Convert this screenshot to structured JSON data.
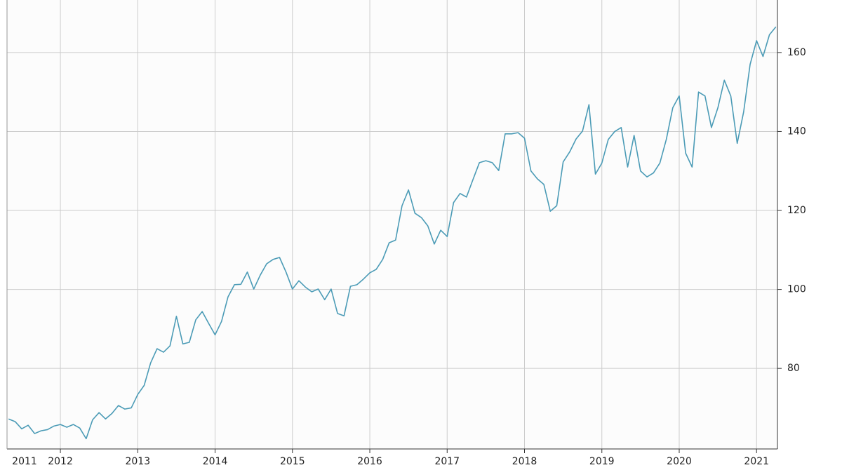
{
  "chart_data": {
    "type": "line",
    "x": [
      2011.33,
      2011.4167,
      2011.5,
      2011.5833,
      2011.6667,
      2011.75,
      2011.8333,
      2011.9167,
      2012.0,
      2012.0833,
      2012.1667,
      2012.25,
      2012.3333,
      2012.4167,
      2012.5,
      2012.5833,
      2012.6667,
      2012.75,
      2012.8333,
      2012.9167,
      2013.0,
      2013.0833,
      2013.1667,
      2013.25,
      2013.3333,
      2013.4167,
      2013.5,
      2013.5833,
      2013.6667,
      2013.75,
      2013.8333,
      2013.9167,
      2014.0,
      2014.0833,
      2014.1667,
      2014.25,
      2014.3333,
      2014.4167,
      2014.5,
      2014.5833,
      2014.6667,
      2014.75,
      2014.8333,
      2014.9167,
      2015.0,
      2015.0833,
      2015.1667,
      2015.25,
      2015.3333,
      2015.4167,
      2015.5,
      2015.5833,
      2015.6667,
      2015.75,
      2015.8333,
      2015.9167,
      2016.0,
      2016.0833,
      2016.1667,
      2016.25,
      2016.3333,
      2016.4167,
      2016.5,
      2016.5833,
      2016.6667,
      2016.75,
      2016.8333,
      2016.9167,
      2017.0,
      2017.0833,
      2017.1667,
      2017.25,
      2017.3333,
      2017.4167,
      2017.5,
      2017.5833,
      2017.6667,
      2017.75,
      2017.8333,
      2017.9167,
      2018.0,
      2018.0833,
      2018.1667,
      2018.25,
      2018.3333,
      2018.4167,
      2018.5,
      2018.5833,
      2018.6667,
      2018.75,
      2018.8333,
      2018.9167,
      2019.0,
      2019.0833,
      2019.1667,
      2019.25,
      2019.3333,
      2019.4167,
      2019.5,
      2019.5833,
      2019.6667,
      2019.75,
      2019.8333,
      2019.9167,
      2020.0,
      2020.0833,
      2020.1667,
      2020.25,
      2020.3333,
      2020.4167,
      2020.5,
      2020.5833,
      2020.6667,
      2020.75,
      2020.8333,
      2020.9167,
      2021.0,
      2021.0833,
      2021.1667,
      2021.25
    ],
    "series": [
      {
        "color": "#4b9bb6",
        "values": [
          67.2,
          66.5,
          64.7,
          65.6,
          63.5,
          64.2,
          64.5,
          65.4,
          65.8,
          65.1,
          65.8,
          64.9,
          62.2,
          67.0,
          68.8,
          67.2,
          68.6,
          70.6,
          69.7,
          70.0,
          73.4,
          75.7,
          81.4,
          85.0,
          84.1,
          85.7,
          93.2,
          86.2,
          86.6,
          92.3,
          94.4,
          91.4,
          88.5,
          91.9,
          98.1,
          101.2,
          101.3,
          104.4,
          100.1,
          103.6,
          106.5,
          107.6,
          108.1,
          104.4,
          100.1,
          102.2,
          100.6,
          99.4,
          100.1,
          97.4,
          100.1,
          93.9,
          93.3,
          100.8,
          101.2,
          102.6,
          104.2,
          105.1,
          107.6,
          111.8,
          112.5,
          121.2,
          125.2,
          119.3,
          118.2,
          116.1,
          111.5,
          115.0,
          113.4,
          122.0,
          124.3,
          123.4,
          127.8,
          132.1,
          132.6,
          132.1,
          130.1,
          139.4,
          139.4,
          139.7,
          138.3,
          130.0,
          128.0,
          126.6,
          119.8,
          121.2,
          132.3,
          134.8,
          138.1,
          140.1,
          146.8,
          129.2,
          132.0,
          138.0,
          140.0,
          141.0,
          131.0,
          139.0,
          130.0,
          128.5,
          129.5,
          132.0,
          138.0,
          146.0,
          149.0,
          134.5,
          131.0,
          150.0,
          149.0,
          141.0,
          146.0,
          153.0,
          149.0,
          137.0,
          145.0,
          157.0,
          163.0,
          159.0,
          164.5,
          166.5
        ]
      }
    ],
    "xlim": [
      2011.31,
      2021.27
    ],
    "xticks": [
      2011,
      2012,
      2013,
      2014,
      2015,
      2016,
      2017,
      2018,
      2019,
      2020,
      2021
    ],
    "ylim": [
      59.6,
      173.3
    ],
    "yticks": [
      80,
      100,
      120,
      140,
      160
    ],
    "grid": true
  }
}
